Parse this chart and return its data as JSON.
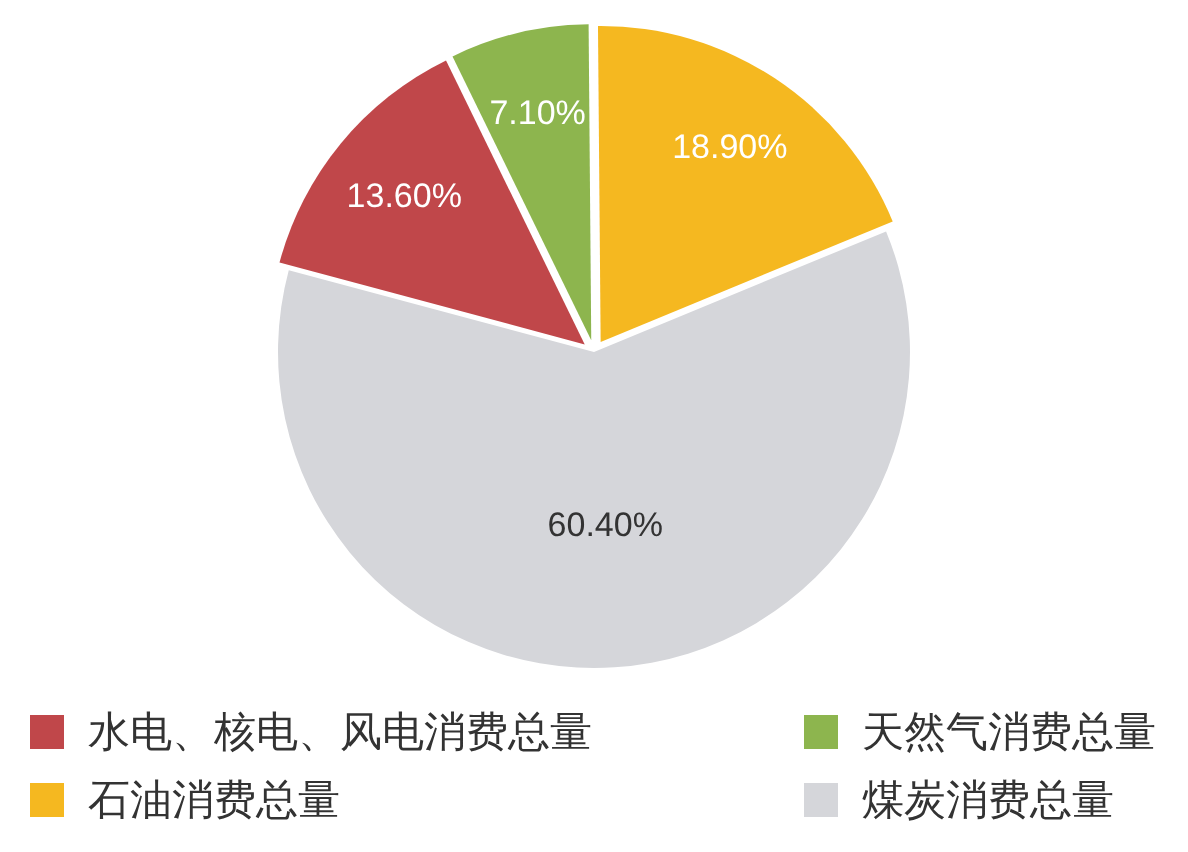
{
  "chart_data": {
    "type": "pie",
    "categories": [
      "水电、核电、风电消费总量",
      "天然气消费总量",
      "石油消费总量",
      "煤炭消费总量"
    ],
    "values": [
      13.6,
      7.1,
      18.9,
      60.4
    ],
    "colors": [
      "#c0474a",
      "#8db54e",
      "#f5b820",
      "#d5d6da"
    ],
    "value_labels": [
      "13.60%",
      "7.10%",
      "18.90%",
      "60.40%"
    ],
    "legend": "bottom"
  }
}
